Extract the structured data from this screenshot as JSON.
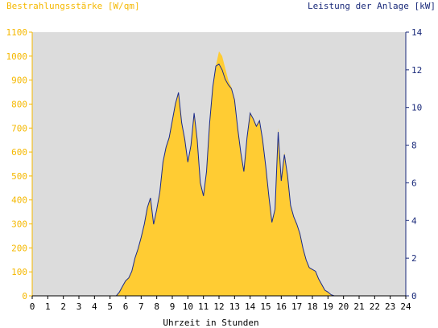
{
  "chart_data": {
    "type": "area",
    "left_axis_title": "Bestrahlungsstärke [W/qm]",
    "right_axis_title": "Leistung der Anlage [kW]",
    "xlabel": "Uhrzeit in Stunden",
    "xlim": [
      0,
      24
    ],
    "x_ticks": [
      "0",
      "1",
      "2",
      "3",
      "4",
      "5",
      "6",
      "7",
      "8",
      "9",
      "10",
      "11",
      "12",
      "13",
      "14",
      "15",
      "16",
      "17",
      "18",
      "19",
      "20",
      "21",
      "22",
      "23",
      "24"
    ],
    "ylim_left": [
      0,
      1100
    ],
    "y_ticks_left": [
      "0",
      "100",
      "200",
      "300",
      "400",
      "500",
      "600",
      "700",
      "800",
      "900",
      "1000",
      "1100"
    ],
    "ylim_right": [
      0,
      14
    ],
    "y_ticks_right": [
      "0",
      "2",
      "4",
      "6",
      "8",
      "10",
      "12",
      "14"
    ],
    "series": [
      {
        "axis": "left",
        "style": "filled-area",
        "x": [
          5.4,
          5.6,
          5.8,
          6.0,
          6.2,
          6.4,
          6.6,
          6.8,
          7.0,
          7.2,
          7.4,
          7.6,
          7.8,
          8.0,
          8.2,
          8.4,
          8.6,
          8.8,
          9.0,
          9.2,
          9.4,
          9.6,
          9.8,
          10.0,
          10.2,
          10.4,
          10.6,
          10.8,
          11.0,
          11.2,
          11.4,
          11.6,
          11.8,
          12.0,
          12.2,
          12.4,
          12.6,
          12.8,
          13.0,
          13.2,
          13.4,
          13.6,
          13.8,
          14.0,
          14.2,
          14.4,
          14.6,
          14.8,
          15.0,
          15.2,
          15.4,
          15.6,
          15.8,
          16.0,
          16.2,
          16.4,
          16.6,
          16.8,
          17.0,
          17.2,
          17.4,
          17.6,
          17.8,
          18.0,
          18.2,
          18.4,
          18.6,
          18.8,
          19.0,
          19.2,
          19.4,
          19.6,
          19.8,
          20.0
        ],
        "y": [
          0,
          15,
          40,
          65,
          75,
          100,
          160,
          200,
          240,
          300,
          370,
          410,
          300,
          360,
          430,
          560,
          620,
          660,
          730,
          800,
          850,
          720,
          650,
          560,
          630,
          760,
          650,
          470,
          420,
          520,
          720,
          870,
          960,
          1020,
          1000,
          950,
          900,
          870,
          820,
          700,
          600,
          520,
          660,
          760,
          740,
          710,
          730,
          650,
          540,
          420,
          310,
          360,
          700,
          480,
          600,
          500,
          380,
          330,
          300,
          260,
          200,
          150,
          120,
          110,
          100,
          70,
          50,
          25,
          15,
          5,
          0,
          0,
          0,
          0
        ]
      },
      {
        "axis": "right",
        "style": "line",
        "x": [
          5.4,
          5.6,
          5.8,
          6.0,
          6.2,
          6.4,
          6.6,
          6.8,
          7.0,
          7.2,
          7.4,
          7.6,
          7.8,
          8.0,
          8.2,
          8.4,
          8.6,
          8.8,
          9.0,
          9.2,
          9.4,
          9.6,
          9.8,
          10.0,
          10.2,
          10.4,
          10.6,
          10.8,
          11.0,
          11.2,
          11.4,
          11.6,
          11.8,
          12.0,
          12.2,
          12.4,
          12.6,
          12.8,
          13.0,
          13.2,
          13.4,
          13.6,
          13.8,
          14.0,
          14.2,
          14.4,
          14.6,
          14.8,
          15.0,
          15.2,
          15.4,
          15.6,
          15.8,
          16.0,
          16.2,
          16.4,
          16.6,
          16.8,
          17.0,
          17.2,
          17.4,
          17.6,
          17.8,
          18.0,
          18.2,
          18.4,
          18.6,
          18.8,
          19.0,
          19.2,
          19.4,
          19.6,
          19.8,
          20.0
        ],
        "y": [
          0,
          0.2,
          0.5,
          0.8,
          0.95,
          1.3,
          2.0,
          2.5,
          3.1,
          3.8,
          4.7,
          5.2,
          3.8,
          4.6,
          5.5,
          7.1,
          7.9,
          8.4,
          9.3,
          10.2,
          10.8,
          9.2,
          8.3,
          7.1,
          8.0,
          9.7,
          8.3,
          6.0,
          5.3,
          6.6,
          9.2,
          11.1,
          12.2,
          12.3,
          12.0,
          11.5,
          11.2,
          11.0,
          10.4,
          8.9,
          7.6,
          6.6,
          8.4,
          9.7,
          9.4,
          9.0,
          9.3,
          8.3,
          6.9,
          5.3,
          3.9,
          4.6,
          8.7,
          6.1,
          7.5,
          6.4,
          4.8,
          4.2,
          3.8,
          3.3,
          2.5,
          1.9,
          1.5,
          1.4,
          1.3,
          0.9,
          0.6,
          0.3,
          0.2,
          0.06,
          0,
          0,
          0,
          0
        ]
      }
    ],
    "colors": {
      "plot_background": "#dcdcdc",
      "irradiance_fill": "#ffcc33",
      "power_line": "#1a2a8a",
      "left_axis_text": "#f5b800",
      "right_axis_text": "#1a2a7a",
      "bottom_axis_text": "#000000"
    },
    "grid": false,
    "legend": "none"
  }
}
